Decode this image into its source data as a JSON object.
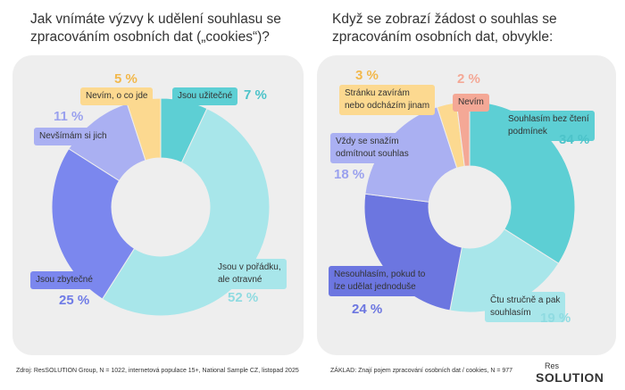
{
  "chart_data": [
    {
      "type": "pie",
      "title": "Jak vnímáte výzvy k udělení souhlasu se\nzpracováním osobních dat („cookies“)?",
      "categories": [
        "Jsou užitečné",
        "Jsou v pořádku,\nale otravné",
        "Jsou zbytečné",
        "Nevšímám si jich",
        "Nevím, o co jde"
      ],
      "values": [
        7,
        52,
        25,
        11,
        5
      ],
      "value_labels": [
        "7 %",
        "52 %",
        "25 %",
        "11 %",
        "5 %"
      ],
      "colors": [
        "#5dcfd4",
        "#a8e6ea",
        "#7b87ee",
        "#aab0f2",
        "#fcd990"
      ]
    },
    {
      "type": "pie",
      "title": "Když se zobrazí žádost o souhlas se\nzpracováním osobních dat, obvykle:",
      "categories": [
        "Souhlasím bez čtení\npodmínek",
        "Čtu stručně a pak\nsouhlasím",
        "Nesouhlasím, pokud to\nlze udělat jednoduše",
        "Vždy se snažím\nodmítnout souhlas",
        "Stránku zavírám\nnebo odcházím jinam",
        "Nevím"
      ],
      "values": [
        34,
        19,
        24,
        18,
        3,
        2
      ],
      "value_labels": [
        "34 %",
        "19 %",
        "24 %",
        "18 %",
        "3 %",
        "2 %"
      ],
      "colors": [
        "#5dcfd4",
        "#a8e6ea",
        "#6c76e0",
        "#aab0f2",
        "#fcd990",
        "#f4a896"
      ]
    }
  ],
  "footer": {
    "source": "Zdroj: ResSOLUTION Group, N = 1022, internetová populace 15+, National Sample CZ, listopad 2025",
    "base": "ZÁKLAD: Znají pojem zpracování osobních dat / cookies, N =  977",
    "logo_top": "Res",
    "logo_bottom": "SOLUTION"
  }
}
